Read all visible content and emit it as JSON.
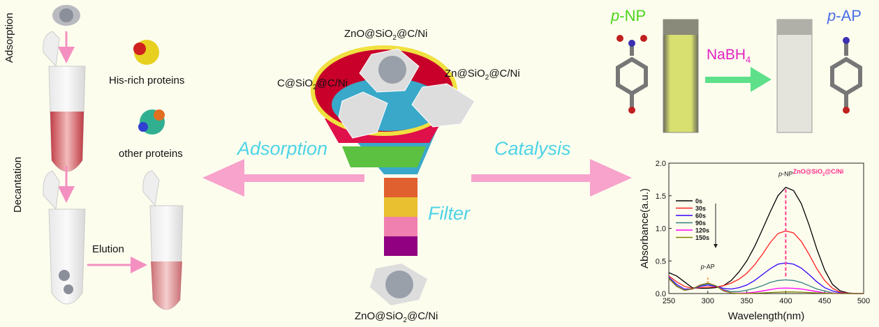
{
  "colors": {
    "background": "#fdfdee",
    "arrow": "#f7a3cc",
    "process_text": "#4fd3e6",
    "pnp_label": "#4cd41a",
    "nabh4_label": "#e020c0",
    "pap_label": "#4a6ee8",
    "chart_title": "#ff2a8a"
  },
  "left": {
    "adsorption_label": "Adsorption",
    "decantation_label": "Decantation",
    "his_rich_label": "His-rich proteins",
    "other_label": "other proteins",
    "elution_label": "Elution"
  },
  "center": {
    "top_material": {
      "a": "ZnO@SiO",
      "sub": "2",
      "b": "@C/Ni"
    },
    "left_material": {
      "a": "C@SiO",
      "sub": "2",
      "b": "@C/Ni"
    },
    "right_material": {
      "a": "Zn@SiO",
      "sub": "2",
      "b": "@C/Ni"
    },
    "bottom_material": {
      "a": "ZnO@SiO",
      "sub": "2",
      "b": "@C/Ni"
    },
    "adsorption": "Adsorption",
    "catalysis": "Catalysis",
    "filter": "Filter"
  },
  "reaction": {
    "pnp": {
      "prefix": "p",
      "rest": "-NP"
    },
    "pap": {
      "prefix": "p",
      "rest": "-AP"
    },
    "reagent": {
      "a": "NaBH",
      "sub": "4"
    }
  },
  "chart_data": {
    "type": "line",
    "title": "ZnO@SiO2@C/Ni",
    "title_parts": {
      "a": "ZnO@SiO",
      "sub": "2",
      "b": "@C/Ni"
    },
    "xlabel": "Wavelength(nm)",
    "ylabel": "Absorbance(a.u.)",
    "xlim": [
      250,
      500
    ],
    "ylim": [
      0,
      2.0
    ],
    "xticks": [
      "250",
      "300",
      "350",
      "400",
      "450",
      "500"
    ],
    "yticks": [
      "0.0",
      "0.5",
      "1.0",
      "1.5",
      "2.0"
    ],
    "grid": false,
    "legend": "top-left",
    "annotations": [
      {
        "prefix": "p",
        "rest": "-NP",
        "x": 400
      },
      {
        "prefix": "p",
        "rest": "-AP",
        "x": 300
      }
    ],
    "x": [
      250,
      260,
      270,
      280,
      290,
      300,
      310,
      320,
      330,
      340,
      350,
      360,
      370,
      380,
      390,
      400,
      410,
      420,
      430,
      440,
      450,
      460,
      470,
      480,
      490,
      500
    ],
    "series": [
      {
        "name": "0s",
        "color": "#000000",
        "values": [
          0.32,
          0.27,
          0.18,
          0.09,
          0.08,
          0.08,
          0.09,
          0.12,
          0.2,
          0.33,
          0.5,
          0.72,
          0.98,
          1.25,
          1.5,
          1.63,
          1.58,
          1.38,
          1.05,
          0.68,
          0.36,
          0.14,
          0.04,
          0.01,
          0,
          0
        ]
      },
      {
        "name": "30s",
        "color": "#ff2020",
        "values": [
          0.27,
          0.18,
          0.11,
          0.08,
          0.09,
          0.1,
          0.1,
          0.12,
          0.16,
          0.22,
          0.31,
          0.44,
          0.6,
          0.78,
          0.92,
          0.96,
          0.93,
          0.8,
          0.6,
          0.38,
          0.2,
          0.08,
          0.02,
          0.005,
          0,
          0
        ]
      },
      {
        "name": "60s",
        "color": "#3300ff",
        "values": [
          0.25,
          0.14,
          0.07,
          0.07,
          0.11,
          0.13,
          0.11,
          0.08,
          0.07,
          0.09,
          0.13,
          0.2,
          0.29,
          0.38,
          0.45,
          0.47,
          0.45,
          0.39,
          0.29,
          0.18,
          0.09,
          0.04,
          0.01,
          0,
          0,
          0
        ]
      },
      {
        "name": "90s",
        "color": "#2f8080",
        "values": [
          0.24,
          0.12,
          0.05,
          0.07,
          0.12,
          0.15,
          0.12,
          0.06,
          0.03,
          0.03,
          0.05,
          0.08,
          0.12,
          0.17,
          0.2,
          0.21,
          0.2,
          0.17,
          0.12,
          0.07,
          0.04,
          0.01,
          0,
          0,
          0,
          0
        ]
      },
      {
        "name": "120s",
        "color": "#ff00ff",
        "values": [
          0.23,
          0.11,
          0.05,
          0.07,
          0.13,
          0.16,
          0.12,
          0.05,
          0.01,
          0.005,
          0.01,
          0.02,
          0.04,
          0.06,
          0.08,
          0.085,
          0.08,
          0.07,
          0.05,
          0.03,
          0.01,
          0.005,
          0,
          0,
          0,
          0
        ]
      },
      {
        "name": "150s",
        "color": "#808000",
        "values": [
          0.23,
          0.11,
          0.05,
          0.07,
          0.13,
          0.16,
          0.12,
          0.04,
          0.01,
          0,
          0,
          0.005,
          0.01,
          0.015,
          0.02,
          0.025,
          0.025,
          0.02,
          0.015,
          0.01,
          0.005,
          0,
          0,
          0,
          0,
          0
        ]
      }
    ]
  }
}
